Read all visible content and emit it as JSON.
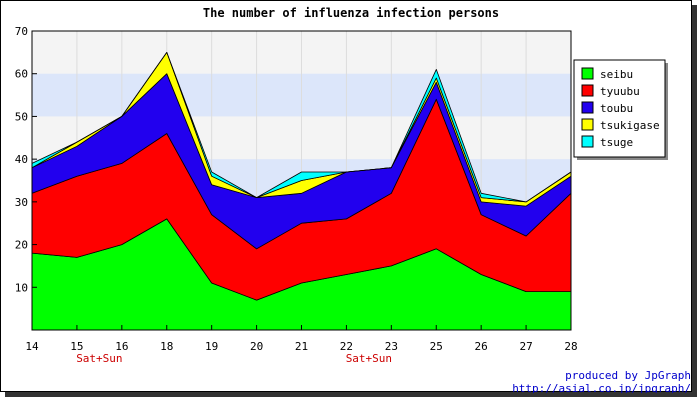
{
  "chart_data": {
    "type": "area",
    "stacked": true,
    "title": "The number of influenza infection persons",
    "x": [
      "14",
      "15",
      "16",
      "18",
      "19",
      "20",
      "21",
      "22",
      "23",
      "25",
      "26",
      "27",
      "28"
    ],
    "x_sublabels": [
      {
        "x": "15.5",
        "text": "Sat+Sun"
      },
      {
        "x": "22.5",
        "text": "Sat+Sun"
      }
    ],
    "ylim": [
      0,
      70
    ],
    "yticks": [
      10,
      20,
      30,
      40,
      50,
      60,
      70
    ],
    "y_bands": [
      [
        30,
        40
      ],
      [
        50,
        60
      ]
    ],
    "series": [
      {
        "name": "seibu",
        "color": "#00ff00",
        "values": [
          18,
          17,
          20,
          26,
          11,
          7,
          11,
          13,
          15,
          19,
          13,
          9,
          9
        ]
      },
      {
        "name": "tyuubu",
        "color": "#ff0000",
        "values": [
          14,
          19,
          19,
          20,
          16,
          12,
          14,
          13,
          17,
          35,
          14,
          13,
          23
        ]
      },
      {
        "name": "toubu",
        "color": "#2200ee",
        "values": [
          6,
          7,
          11,
          14,
          7,
          12,
          7,
          11,
          6,
          4,
          3,
          7,
          4
        ]
      },
      {
        "name": "tsukigase",
        "color": "#ffff00",
        "values": [
          0,
          1,
          0,
          5,
          2,
          0,
          3,
          0,
          0,
          1,
          1,
          1,
          1
        ]
      },
      {
        "name": "tsuge",
        "color": "#00ffff",
        "values": [
          1,
          0,
          0,
          0,
          1,
          0,
          2,
          0,
          0,
          2,
          1,
          0,
          0
        ]
      }
    ],
    "legend_position": "right",
    "grid": true
  },
  "footer": {
    "line1": "produced by JpGraph",
    "line2": "http://asial.co.jp/jpgraph/"
  },
  "colors": {
    "plot_bg": "#f4f4f4",
    "band": "#dce6fa",
    "sublabel": "#cc0000",
    "footer": "#0000cc"
  }
}
